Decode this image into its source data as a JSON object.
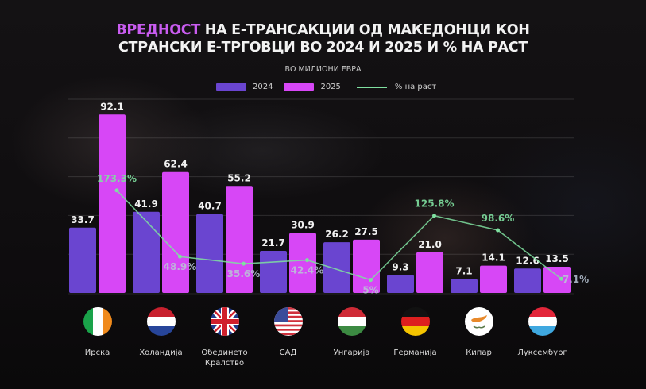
{
  "title": {
    "highlight": "ВРЕДНОСТ",
    "line1_rest": " НА Е-ТРАНСАКЦИИ ОД МАКЕДОНЦИ КОН",
    "line2": "СТРАНСКИ Е-ТРГОВЦИ ВО 2024 И 2025 И % НА РАСТ"
  },
  "subtitle": "ВО МИЛИОНИ ЕВРА",
  "legend": [
    {
      "label": "2024",
      "type": "bar"
    },
    {
      "label": "2025",
      "type": "bar"
    },
    {
      "label": "% на раст",
      "type": "line"
    }
  ],
  "colors": {
    "s2024": "#6a45d0",
    "s2025": "#d747f6",
    "growth": "#7fe0a0",
    "highlight": "#c95cf0"
  },
  "chart_data": {
    "type": "bar",
    "title": "ВРЕДНОСТ НА Е-ТРАНСАКЦИИ ОД МАКЕДОНЦИ КОН СТРАНСКИ Е-ТРГОВЦИ ВО 2024 И 2025 И % НА РАСТ",
    "subtitle": "ВО МИЛИОНИ ЕВРА",
    "xlabel": "",
    "ylabel": "",
    "ylim": [
      0,
      100
    ],
    "gridlines": [
      20,
      40,
      60,
      80,
      100
    ],
    "grid": true,
    "legend_position": "top",
    "categories": [
      "Ирска",
      "Холандија",
      "Обединето Кралство",
      "САД",
      "Унгарија",
      "Германија",
      "Кипар",
      "Луксембург"
    ],
    "series": [
      {
        "name": "2024",
        "type": "bar",
        "values": [
          33.7,
          41.9,
          40.7,
          21.7,
          26.2,
          9.3,
          7.1,
          12.6
        ],
        "labels": [
          "33.7",
          "41.9",
          "40.7",
          "21.7",
          "26.2",
          "9.3",
          "7.1",
          "12.6"
        ]
      },
      {
        "name": "2025",
        "type": "bar",
        "values": [
          92.1,
          62.4,
          55.2,
          30.9,
          27.5,
          21.0,
          14.1,
          13.5
        ],
        "labels": [
          "92.1",
          "62.4",
          "55.2",
          "30.9",
          "27.5",
          "21.0",
          "14.1",
          "13.5"
        ]
      },
      {
        "name": "% на раст",
        "type": "line",
        "values": [
          173.3,
          48.9,
          35.6,
          42.4,
          5,
          125.8,
          98.6,
          7.1
        ],
        "labels": [
          "173.3%",
          "48.9%",
          "35.6%",
          "42.4%",
          "5%",
          "125.8%",
          "98.6%",
          "7.1%"
        ]
      }
    ]
  },
  "countries": [
    {
      "name": "Ирска",
      "flag": "ireland-flag"
    },
    {
      "name": "Холандија",
      "flag": "netherlands-flag"
    },
    {
      "name": "Обединето Кралство",
      "line1": "Обединето",
      "line2": "Кралство",
      "flag": "uk-flag"
    },
    {
      "name": "САД",
      "flag": "usa-flag"
    },
    {
      "name": "Унгарија",
      "flag": "hungary-flag"
    },
    {
      "name": "Германија",
      "flag": "germany-flag"
    },
    {
      "name": "Кипар",
      "flag": "cyprus-flag"
    },
    {
      "name": "Луксембург",
      "flag": "luxembourg-flag"
    }
  ]
}
